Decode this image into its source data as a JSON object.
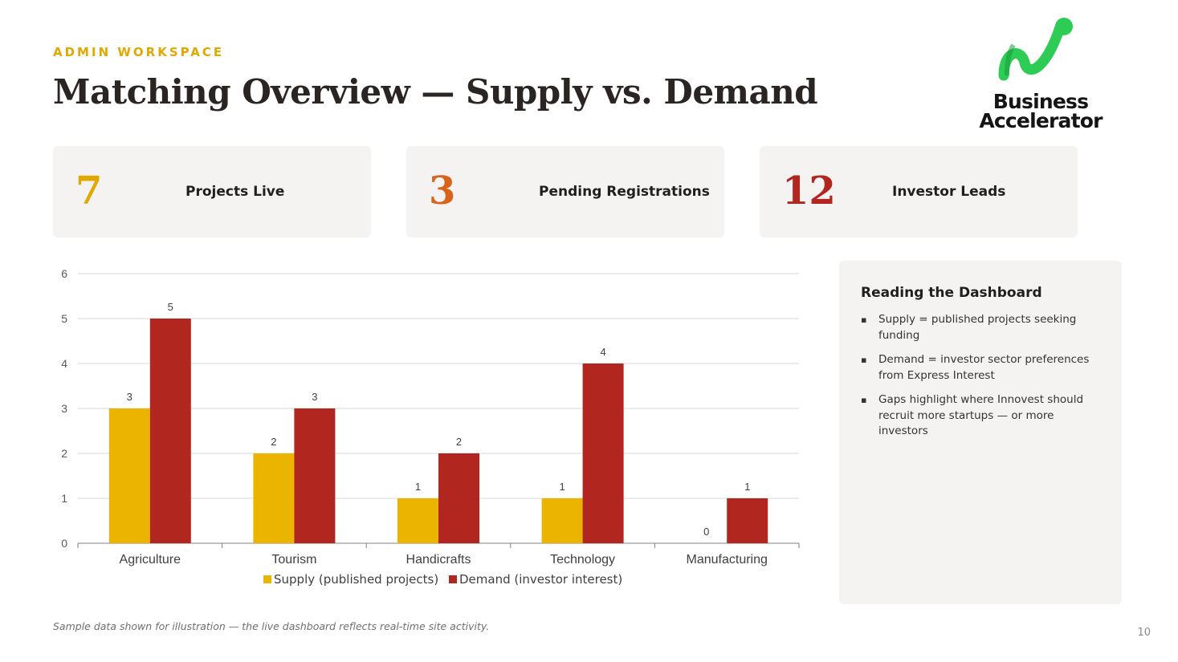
{
  "header": {
    "eyebrow": "ADMIN WORKSPACE",
    "title": "Matching Overview — Supply vs. Demand"
  },
  "logo": {
    "line1": "Business",
    "line2": "Accelerator",
    "icon": "business-accelerator-logo-icon",
    "color": "#2ecc55"
  },
  "kpis": [
    {
      "value": "7",
      "label": "Projects Live",
      "color": "#e0a800"
    },
    {
      "value": "3",
      "label": "Pending Registrations",
      "color": "#d9631a"
    },
    {
      "value": "12",
      "label": "Investor Leads",
      "color": "#b22620"
    }
  ],
  "chart_data": {
    "type": "bar",
    "categories": [
      "Agriculture",
      "Tourism",
      "Handicrafts",
      "Technology",
      "Manufacturing"
    ],
    "series": [
      {
        "name": "Supply (published projects)",
        "values": [
          3,
          2,
          1,
          1,
          0
        ],
        "color": "#ebb400"
      },
      {
        "name": "Demand (investor interest)",
        "values": [
          5,
          3,
          2,
          4,
          1
        ],
        "color": "#b22620"
      }
    ],
    "ylim": [
      0,
      6
    ],
    "yticks": [
      "0",
      "1",
      "2",
      "3",
      "4",
      "5",
      "6"
    ],
    "grid": true,
    "data_labels": true,
    "legend_position": "bottom"
  },
  "sidebar": {
    "title": "Reading the Dashboard",
    "bullets": [
      "Supply = published projects seeking funding",
      "Demand = investor sector preferences from Express Interest",
      "Gaps highlight where Innovest should recruit more startups — or more investors"
    ]
  },
  "footer": {
    "note": "Sample data shown for illustration — the live dashboard reflects real-time site activity.",
    "page": "10"
  }
}
